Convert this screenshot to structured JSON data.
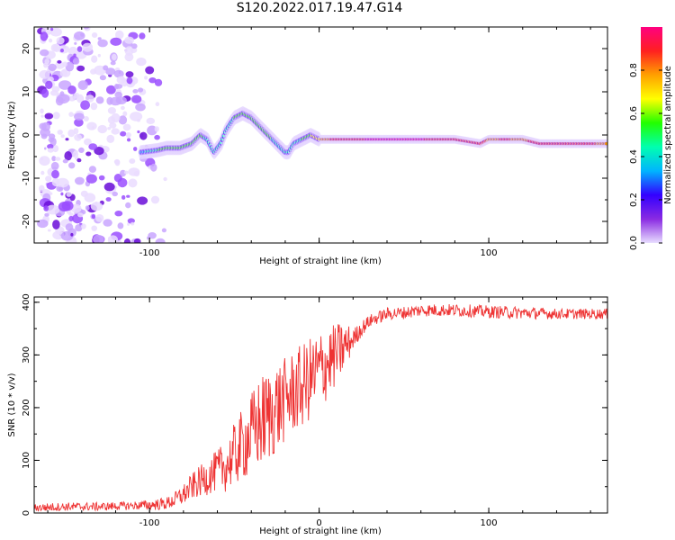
{
  "title": "S120.2022.017.19.47.G14",
  "chart_data": [
    {
      "type": "heatmap",
      "xlabel": "Height of straight line (km)",
      "ylabel": "Frequency (Hz)",
      "xlim": [
        -168,
        170
      ],
      "ylim": [
        -25,
        25
      ],
      "xticks": [
        -100,
        0,
        100
      ],
      "xtick_labels": [
        "-100",
        "",
        "100"
      ],
      "yticks": [
        -20,
        -10,
        0,
        10,
        20
      ],
      "ytick_labels": [
        "-20",
        "-10",
        "0",
        "10",
        "20"
      ],
      "colorbar": {
        "label": "Normalized spectral amplitude",
        "range": [
          0,
          1
        ],
        "ticks": [
          0.0,
          0.2,
          0.4,
          0.6,
          0.8
        ],
        "tick_labels": [
          "0.0",
          "0.2",
          "0.4",
          "0.6",
          "0.8"
        ],
        "colors": [
          "#e8ddff",
          "#8a2be2",
          "#3300ff",
          "#00b4ff",
          "#00ffb0",
          "#22ff00",
          "#ffff00",
          "#ffa000",
          "#ff2020",
          "#ff0080"
        ]
      },
      "ridge": {
        "x": [
          -105,
          -95,
          -90,
          -82,
          -75,
          -70,
          -66,
          -62,
          -58,
          -55,
          -50,
          -45,
          -40,
          -35,
          -30,
          -25,
          -20,
          -18,
          -15,
          -10,
          -5,
          0,
          10,
          30,
          60,
          80,
          95,
          100,
          110,
          120,
          130,
          150,
          170
        ],
        "y": [
          -4,
          -3.5,
          -3,
          -3,
          -2,
          0,
          -1,
          -4,
          -2,
          1,
          4,
          5,
          4,
          2,
          0,
          -2,
          -4,
          -4,
          -2,
          -1,
          0,
          -1,
          -1,
          -1,
          -1,
          -1,
          -2,
          -1,
          -1,
          -1,
          -2,
          -2,
          -2
        ],
        "amplitude": [
          0.35,
          0.5,
          0.55,
          0.6,
          0.5,
          0.55,
          0.45,
          0.4,
          0.45,
          0.4,
          0.5,
          0.55,
          0.5,
          0.5,
          0.55,
          0.45,
          0.4,
          0.4,
          0.45,
          0.5,
          0.6,
          0.7,
          0.9,
          0.95,
          0.95,
          0.9,
          0.9,
          0.8,
          0.85,
          0.8,
          0.9,
          0.9,
          0.8
        ]
      },
      "noise_region_x": [
        -168,
        -90
      ]
    },
    {
      "type": "line",
      "xlabel": "Height of straight line (km)",
      "ylabel": "SNR (10 * v/v)",
      "xlim": [
        -168,
        170
      ],
      "ylim": [
        0,
        410
      ],
      "xticks": [
        -100,
        0,
        100
      ],
      "xtick_labels": [
        "-100",
        "0",
        "100"
      ],
      "yticks": [
        0,
        100,
        200,
        300,
        400
      ],
      "ytick_labels": [
        "0",
        "100",
        "200",
        "300",
        "400"
      ],
      "color": "#ee3333",
      "series": [
        {
          "x": [
            -168,
            -150,
            -130,
            -110,
            -100,
            -90,
            -85,
            -80,
            -75,
            -70,
            -65,
            -60,
            -55,
            -50,
            -45,
            -40,
            -35,
            -30,
            -25,
            -20,
            -15,
            -10,
            -5,
            0,
            5,
            10,
            15,
            20,
            25,
            30,
            40,
            50,
            60,
            80,
            100,
            120,
            140,
            170
          ],
          "y": [
            10,
            12,
            12,
            14,
            15,
            18,
            25,
            35,
            50,
            60,
            70,
            80,
            90,
            110,
            130,
            150,
            170,
            185,
            200,
            215,
            230,
            240,
            255,
            270,
            285,
            300,
            315,
            330,
            350,
            365,
            378,
            380,
            385,
            385,
            382,
            380,
            378,
            378
          ],
          "spread": [
            8,
            8,
            8,
            8,
            10,
            12,
            15,
            20,
            25,
            30,
            35,
            40,
            50,
            60,
            70,
            80,
            90,
            90,
            90,
            80,
            80,
            80,
            80,
            80,
            70,
            60,
            50,
            20,
            15,
            12,
            12,
            12,
            12,
            12,
            12,
            12,
            10,
            10
          ]
        }
      ]
    }
  ]
}
